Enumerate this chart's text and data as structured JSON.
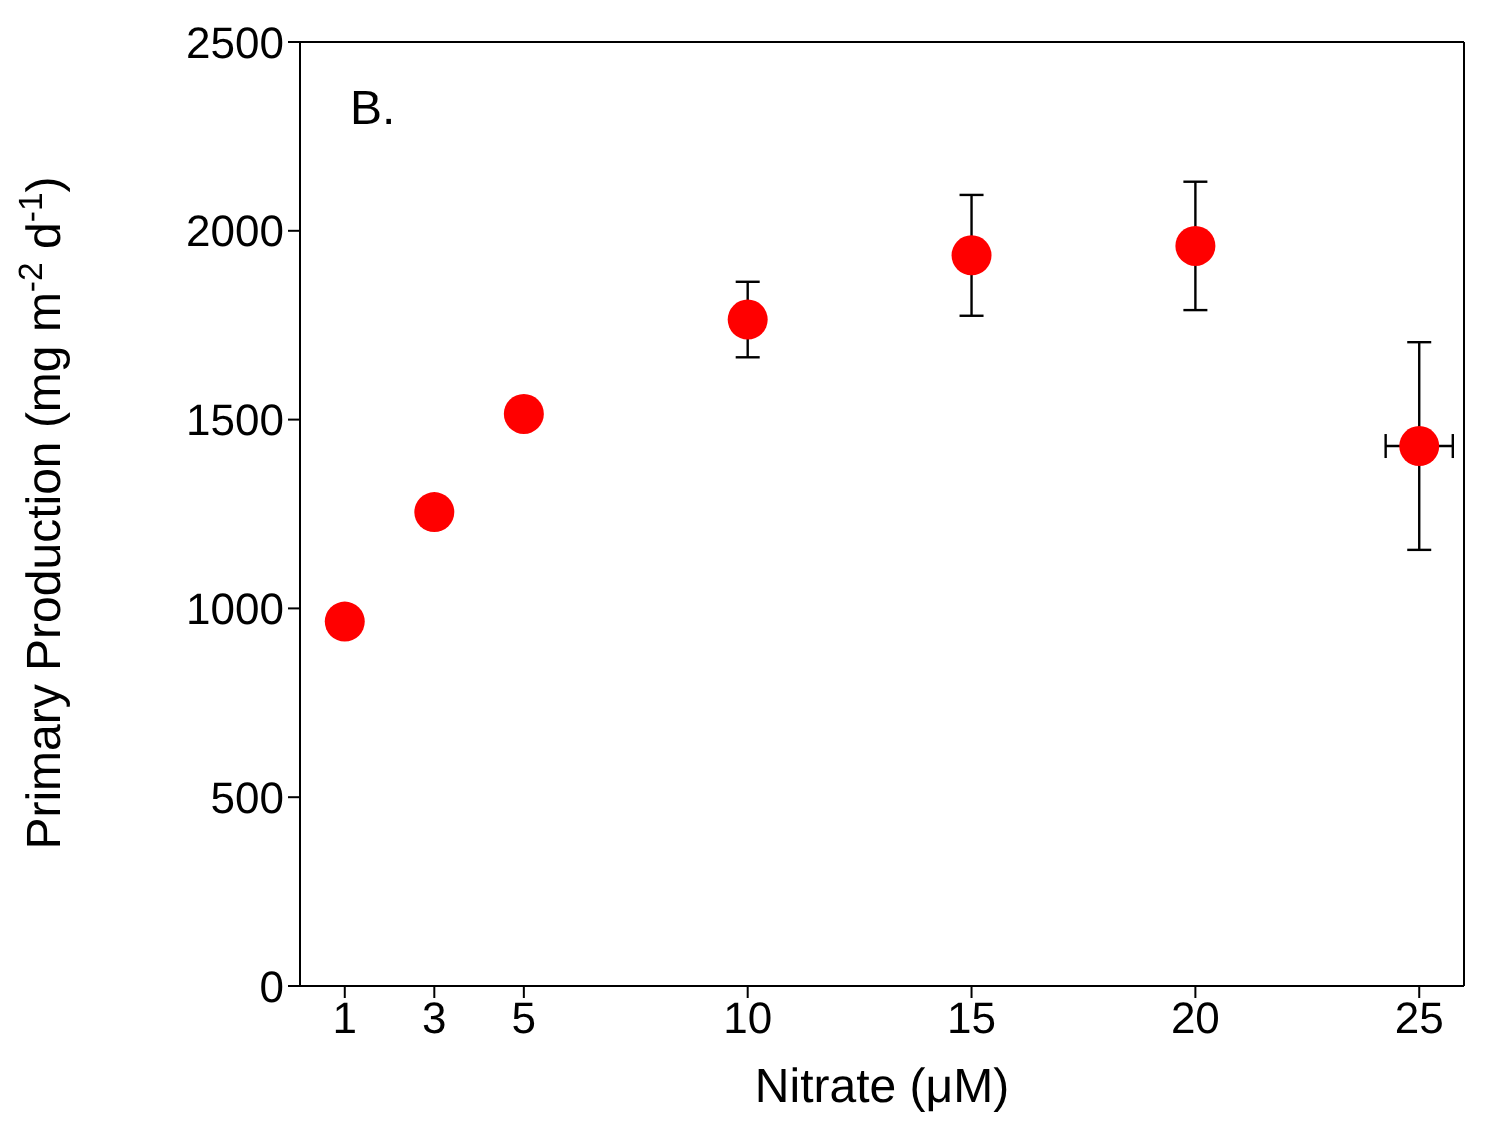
{
  "chart_data": {
    "type": "scatter",
    "xlabel": "Nitrate (μM)",
    "ylabel": "Primary Production (mg m$^{-2}$ d$^{-1}$)",
    "annotations": [
      "B."
    ],
    "x": [
      1,
      3,
      5,
      10,
      15,
      20,
      25
    ],
    "series": [
      {
        "color": "#ff0000",
        "values": [
          965,
          1255,
          1515,
          1765,
          1935,
          1960,
          1430
        ],
        "errors": [
          null,
          null,
          null,
          100,
          160,
          170,
          275
        ],
        "xerrors": [
          null,
          null,
          null,
          null,
          null,
          null,
          0.75
        ]
      }
    ],
    "xlim": [
      0,
      26
    ],
    "xticks": [
      1,
      3,
      5,
      10,
      15,
      20,
      25
    ],
    "ylim": [
      0,
      2500
    ],
    "yticks": [
      0,
      500,
      1000,
      1500,
      2000,
      2500
    ],
    "marker": "circle"
  }
}
